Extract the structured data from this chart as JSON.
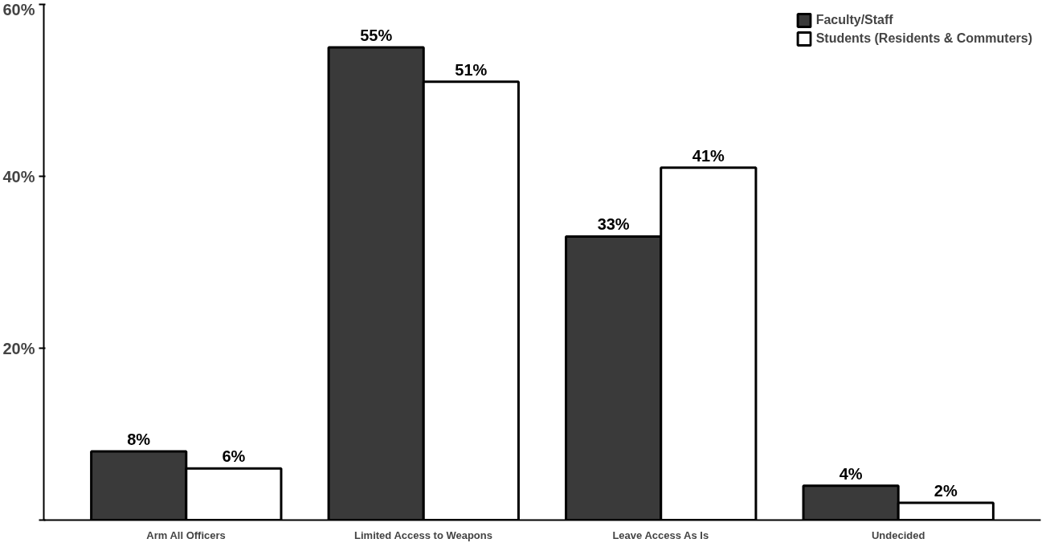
{
  "chart_data": {
    "type": "bar",
    "categories": [
      "Arm All Officers",
      "Limited Access to Weapons",
      "Leave Access As Is",
      "Undecided"
    ],
    "series": [
      {
        "name": "Faculty/Staff",
        "color": "#3a3a3a",
        "values": [
          8,
          55,
          33,
          4
        ],
        "value_labels": [
          "8%",
          "55%",
          "33%",
          "4%"
        ]
      },
      {
        "name": "Students (Residents & Commuters)",
        "color": "#ffffff",
        "values": [
          6,
          51,
          41,
          2
        ],
        "value_labels": [
          "6%",
          "51%",
          "41%",
          "2%"
        ]
      }
    ],
    "ylim": [
      0,
      60
    ],
    "yticks": [
      {
        "value": 0,
        "label": null
      },
      {
        "value": 20,
        "label": "20%"
      },
      {
        "value": 40,
        "label": "40%"
      },
      {
        "value": 60,
        "label": "60%"
      }
    ],
    "grid": false,
    "legend": "top right"
  }
}
